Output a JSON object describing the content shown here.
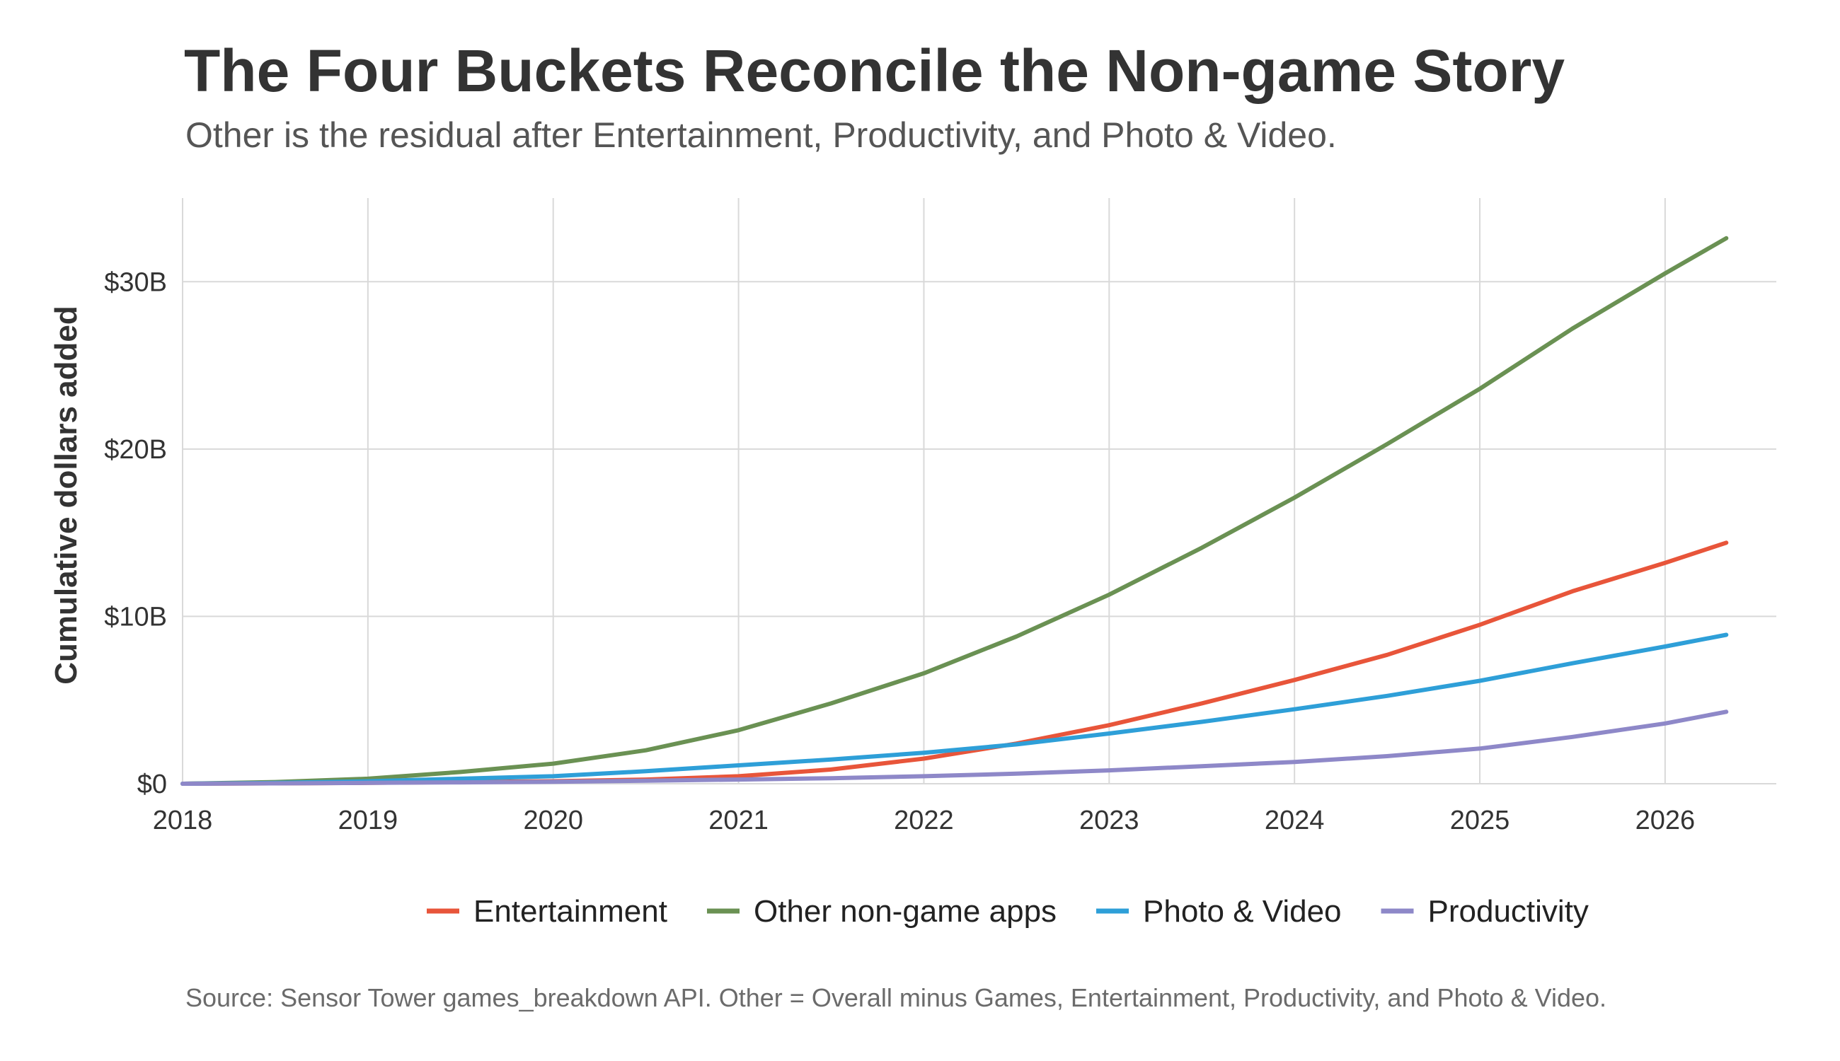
{
  "title": "The Four Buckets Reconcile the Non-game Story",
  "subtitle": "Other is the residual after Entertainment, Productivity, and Photo & Video.",
  "caption": "Source: Sensor Tower games_breakdown API. Other = Overall minus Games, Entertainment, Productivity, and Photo & Video.",
  "chart_data": {
    "type": "line",
    "ylabel": "Cumulative dollars added",
    "xlabel": "",
    "xlim": [
      2018,
      2026.6
    ],
    "ylim": [
      0,
      35
    ],
    "x_ticks": [
      2018,
      2019,
      2020,
      2021,
      2022,
      2023,
      2024,
      2025,
      2026
    ],
    "x_tick_labels": [
      "2018",
      "2019",
      "2020",
      "2021",
      "2022",
      "2023",
      "2024",
      "2025",
      "2026"
    ],
    "y_ticks": [
      0,
      10,
      20,
      30
    ],
    "y_tick_labels": [
      "$0",
      "$10B",
      "$20B",
      "$30B"
    ],
    "y_unit": "$B",
    "grid": true,
    "legend_position": "bottom",
    "x": [
      2018.0,
      2018.5,
      2019.0,
      2019.5,
      2020.0,
      2020.5,
      2021.0,
      2021.5,
      2022.0,
      2022.5,
      2023.0,
      2023.5,
      2024.0,
      2024.5,
      2025.0,
      2025.5,
      2026.0,
      2026.33
    ],
    "series": [
      {
        "name": "Entertainment",
        "color": "#e8553a",
        "values": [
          0,
          0.02,
          0.05,
          0.1,
          0.15,
          0.25,
          0.45,
          0.85,
          1.5,
          2.4,
          3.5,
          4.8,
          6.2,
          7.7,
          9.5,
          11.5,
          13.2,
          14.4
        ]
      },
      {
        "name": "Other non-game apps",
        "color": "#6a9153",
        "values": [
          0,
          0.1,
          0.3,
          0.7,
          1.2,
          2.0,
          3.2,
          4.8,
          6.6,
          8.8,
          11.3,
          14.1,
          17.1,
          20.3,
          23.6,
          27.2,
          30.5,
          32.6
        ]
      },
      {
        "name": "Photo & Video",
        "color": "#2e9fd8",
        "values": [
          0,
          0.05,
          0.15,
          0.3,
          0.45,
          0.75,
          1.1,
          1.45,
          1.85,
          2.35,
          3.0,
          3.7,
          4.45,
          5.25,
          6.15,
          7.2,
          8.2,
          8.9
        ]
      },
      {
        "name": "Productivity",
        "color": "#8e88c8",
        "values": [
          0,
          0.02,
          0.05,
          0.08,
          0.12,
          0.18,
          0.25,
          0.33,
          0.45,
          0.6,
          0.8,
          1.05,
          1.3,
          1.65,
          2.1,
          2.8,
          3.6,
          4.3
        ]
      }
    ]
  }
}
